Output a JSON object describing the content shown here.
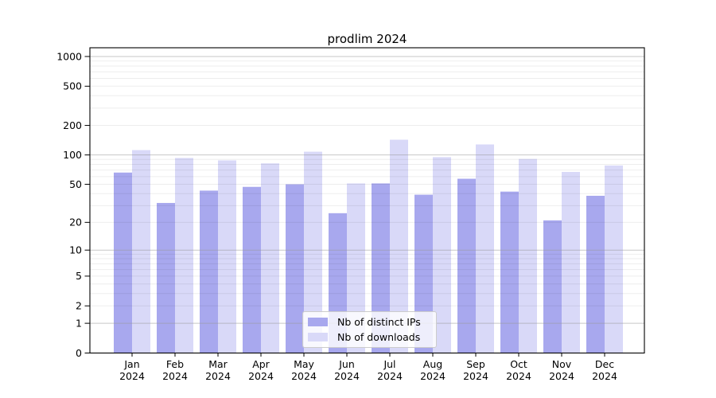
{
  "chart_data": {
    "type": "bar",
    "title": "prodlim 2024",
    "categories": [
      "Jan",
      "Feb",
      "Mar",
      "Apr",
      "May",
      "Jun",
      "Jul",
      "Aug",
      "Sep",
      "Oct",
      "Nov",
      "Dec"
    ],
    "category_year": "2024",
    "series": [
      {
        "name": "Nb of distinct IPs",
        "color": "#a8a8ee",
        "values": [
          66,
          32,
          43,
          47,
          50,
          25,
          51,
          39,
          57,
          42,
          21,
          38
        ]
      },
      {
        "name": "Nb of downloads",
        "color": "#d9d9f8",
        "values": [
          112,
          93,
          88,
          82,
          108,
          51,
          143,
          95,
          128,
          91,
          67,
          78
        ]
      }
    ],
    "xlabel": "",
    "ylabel": "",
    "y_scale": "log1p",
    "ylim": [
      0,
      1000
    ],
    "y_ticks": [
      0,
      1,
      2,
      5,
      10,
      20,
      50,
      100,
      200,
      500,
      1000
    ],
    "major_gridline_values": [
      1,
      10,
      100,
      1000
    ],
    "grid": true,
    "legend_position": "bottom-center",
    "colors": {
      "axis": "#000000",
      "text": "#000000",
      "major_grid": "#999999",
      "minor_grid": "#000000",
      "background": "#ffffff"
    }
  }
}
